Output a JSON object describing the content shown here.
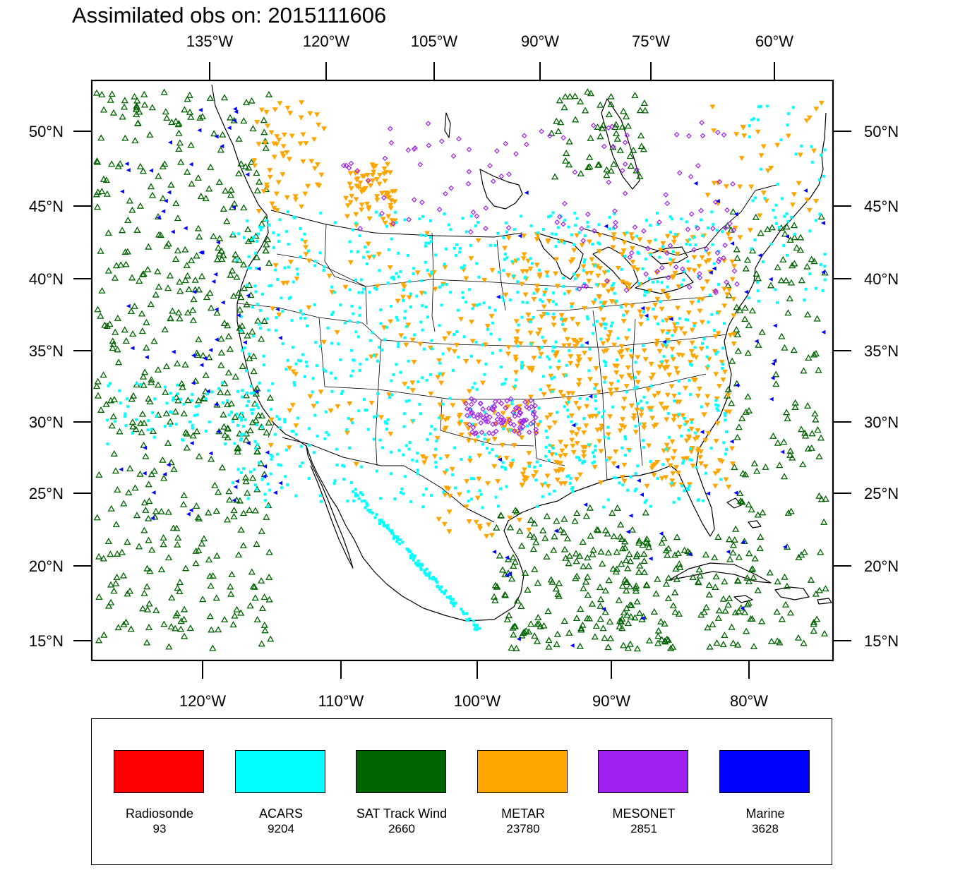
{
  "title": "Assimilated obs on: 2015111606",
  "map": {
    "top_axis_labels": [
      "135°W",
      "120°W",
      "105°W",
      "90°W",
      "75°W",
      "60°W"
    ],
    "bottom_axis_labels": [
      "120°W",
      "110°W",
      "100°W",
      "90°W",
      "80°W"
    ],
    "left_axis_labels": [
      "50°N",
      "45°N",
      "40°N",
      "35°N",
      "30°N",
      "25°N",
      "20°N",
      "15°N"
    ],
    "right_axis_labels": [
      "50°N",
      "45°N",
      "40°N",
      "35°N",
      "30°N",
      "25°N",
      "20°N",
      "15°N"
    ]
  },
  "legend": {
    "items": [
      {
        "label": "Radiosonde",
        "count": "93",
        "color": "#ff0000"
      },
      {
        "label": "ACARS",
        "count": "9204",
        "color": "#00ffff"
      },
      {
        "label": "SAT Track Wind",
        "count": "2660",
        "color": "#006400"
      },
      {
        "label": "METAR",
        "count": "23780",
        "color": "#ffa500"
      },
      {
        "label": "MESONET",
        "count": "2851",
        "color": "#a020f0"
      },
      {
        "label": "Marine",
        "count": "3628",
        "color": "#0000ff"
      }
    ]
  },
  "colors": {
    "acars": "#00ffff",
    "sat_track_wind": "#006400",
    "metar": "#ffa500",
    "mesonet": "#a020f0",
    "marine": "#0000ff",
    "coastline": "#000000"
  }
}
